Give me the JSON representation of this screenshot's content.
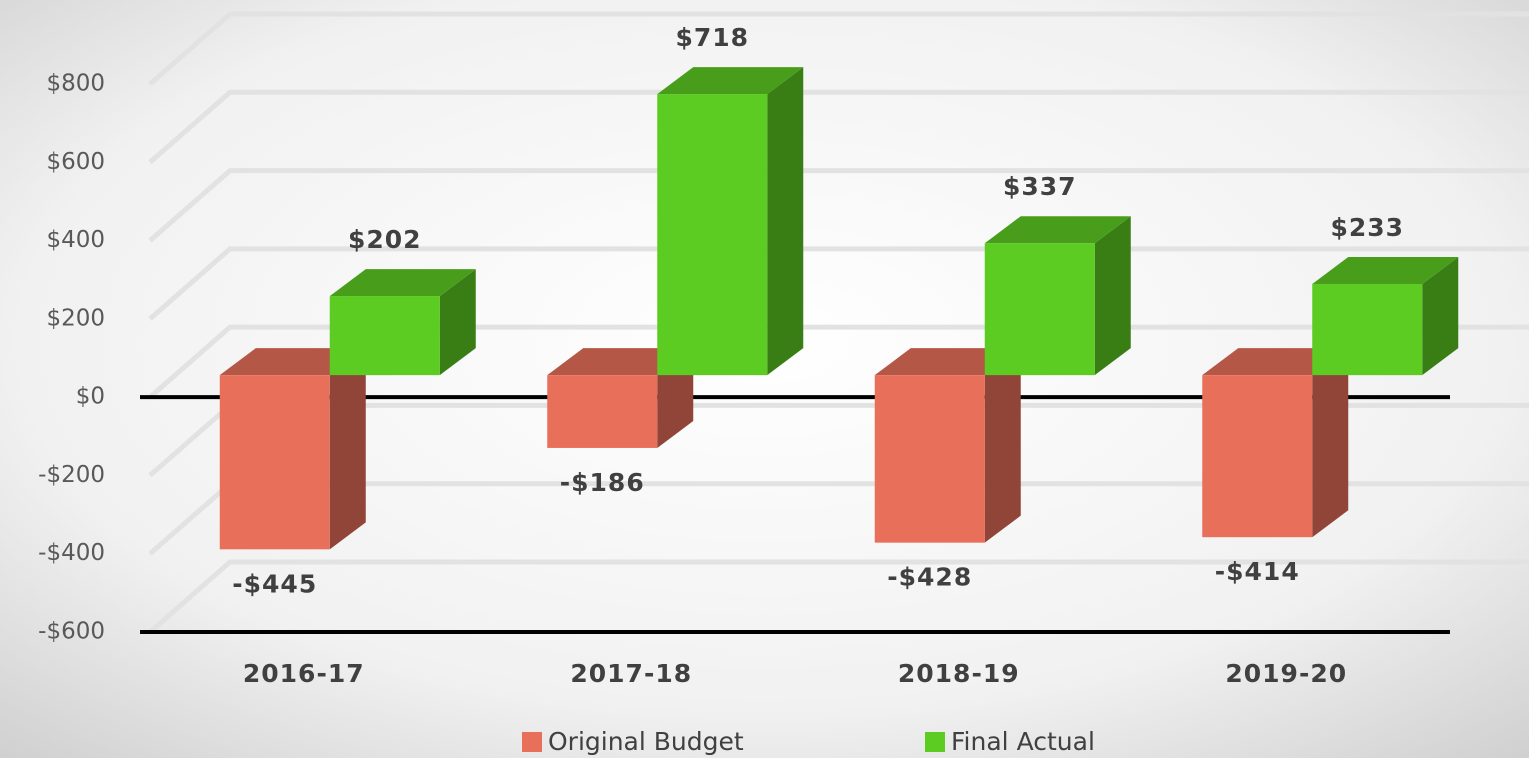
{
  "chart_data": {
    "type": "bar3d",
    "categories": [
      "2016-17",
      "2017-18",
      "2018-19",
      "2019-20"
    ],
    "series": [
      {
        "name": "Original Budget",
        "color": "#e8705a",
        "values": [
          -445,
          -186,
          -428,
          -414
        ],
        "value_labels": [
          "-$445",
          "-$186",
          "-$428",
          "-$414"
        ]
      },
      {
        "name": "Final Actual",
        "color": "#5ccb22",
        "values": [
          202,
          718,
          337,
          233
        ],
        "value_labels": [
          "$202",
          "$718",
          "$337",
          "$233"
        ]
      }
    ],
    "ylim": [
      -600,
      800
    ],
    "yticks": [
      {
        "value": -600,
        "label": "-$600"
      },
      {
        "value": -400,
        "label": "-$400"
      },
      {
        "value": -200,
        "label": "-$200"
      },
      {
        "value": 0,
        "label": "$0"
      },
      {
        "value": 200,
        "label": "$200"
      },
      {
        "value": 400,
        "label": "$400"
      },
      {
        "value": 600,
        "label": "$600"
      },
      {
        "value": 800,
        "label": "$800"
      }
    ],
    "grid": true,
    "legend": "bottom"
  }
}
